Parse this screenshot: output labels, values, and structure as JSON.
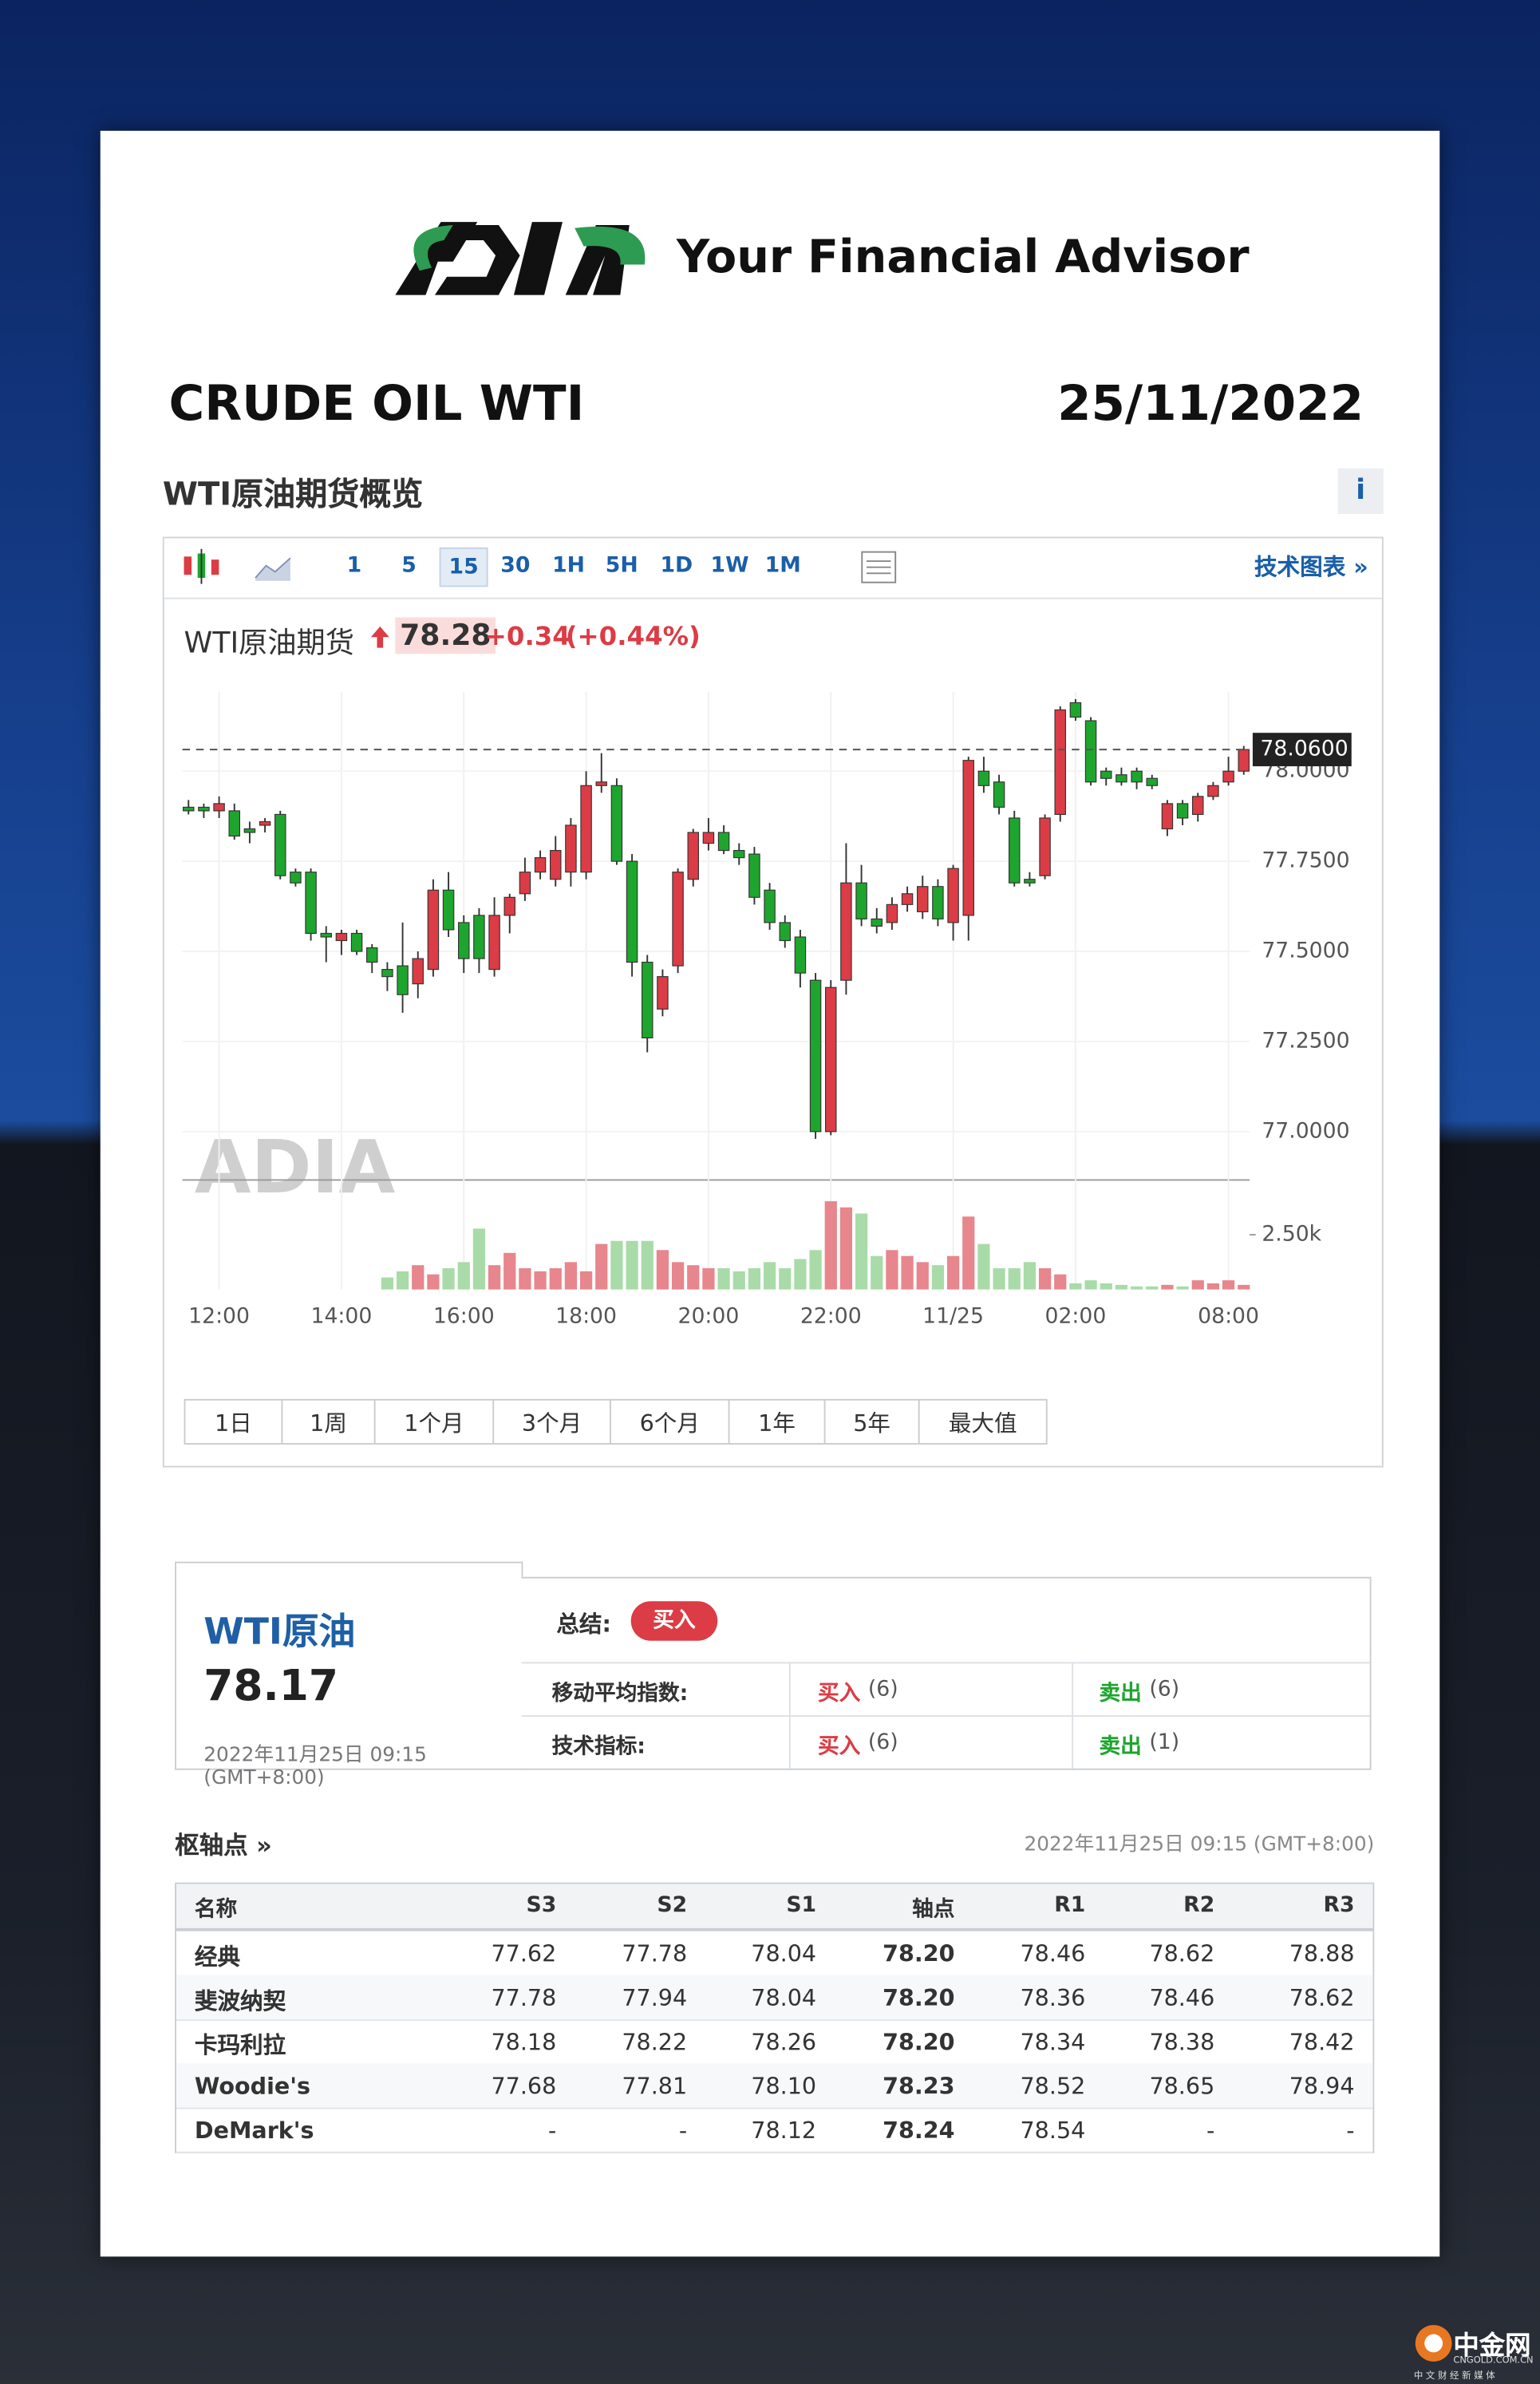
{
  "header": {
    "tagline": "Your Financial Advisor",
    "title": "CRUDE OIL WTI",
    "date": "25/11/2022"
  },
  "overview": {
    "title": "WTI原油期货概览",
    "info": "i",
    "intervals": [
      "1",
      "5",
      "15",
      "30",
      "1H",
      "5H",
      "1D",
      "1W",
      "1M"
    ],
    "tech_chart": "技术图表 »",
    "name": "WTI原油期货",
    "price": "78.28",
    "change": "+0.34",
    "change_pct": "(+0.44%)",
    "ranges": [
      "1日",
      "1周",
      "1个月",
      "3个月",
      "6个月",
      "1年",
      "5年",
      "最大值"
    ]
  },
  "chart_data": {
    "type": "candlestick",
    "watermark": "ADIA",
    "x": [
      null,
      null,
      "12:00",
      null,
      null,
      null,
      null,
      null,
      null,
      null,
      "14:00",
      null,
      null,
      null,
      null,
      null,
      null,
      null,
      "16:00",
      null,
      null,
      null,
      null,
      null,
      null,
      null,
      "18:00",
      null,
      null,
      null,
      null,
      null,
      null,
      null,
      "20:00",
      null,
      null,
      null,
      null,
      null,
      null,
      null,
      "22:00",
      null,
      null,
      null,
      null,
      null,
      null,
      null,
      "11/25",
      null,
      null,
      null,
      null,
      null,
      null,
      null,
      "02:00",
      null,
      null,
      null,
      null,
      null,
      null,
      null,
      null,
      null,
      "08:00",
      null
    ],
    "open": [
      77.9,
      77.9,
      77.89,
      77.89,
      77.84,
      77.85,
      77.88,
      77.72,
      77.72,
      77.55,
      77.53,
      77.55,
      77.51,
      77.45,
      77.46,
      77.41,
      77.45,
      77.67,
      77.58,
      77.6,
      77.45,
      77.6,
      77.66,
      77.72,
      77.7,
      77.72,
      77.72,
      77.96,
      77.96,
      77.75,
      77.47,
      77.34,
      77.46,
      77.7,
      77.8,
      77.83,
      77.78,
      77.77,
      77.67,
      77.58,
      77.54,
      77.42,
      77.0,
      77.42,
      77.69,
      77.59,
      77.58,
      77.63,
      77.61,
      77.68,
      77.58,
      77.6,
      78.0,
      77.97,
      77.87,
      77.7,
      77.71,
      77.88,
      78.19,
      78.14,
      78.0,
      77.99,
      78.0,
      77.98,
      77.84,
      77.91,
      77.88,
      77.93,
      77.97,
      78.0
    ],
    "high": [
      77.92,
      77.91,
      77.93,
      77.91,
      77.86,
      77.87,
      77.89,
      77.73,
      77.73,
      77.57,
      77.56,
      77.56,
      77.52,
      77.47,
      77.58,
      77.5,
      77.7,
      77.72,
      77.6,
      77.62,
      77.65,
      77.66,
      77.76,
      77.78,
      77.82,
      77.87,
      78.0,
      78.05,
      77.98,
      77.77,
      77.49,
      77.45,
      77.73,
      77.84,
      77.87,
      77.85,
      77.8,
      77.79,
      77.69,
      77.6,
      77.56,
      77.44,
      77.42,
      77.8,
      77.74,
      77.62,
      77.65,
      77.68,
      77.71,
      77.7,
      77.74,
      78.04,
      78.04,
      77.99,
      77.89,
      77.72,
      77.88,
      78.18,
      78.2,
      78.15,
      78.01,
      78.01,
      78.01,
      77.99,
      77.92,
      77.92,
      77.94,
      77.97,
      78.04,
      78.07
    ],
    "low": [
      77.88,
      77.87,
      77.87,
      77.81,
      77.8,
      77.83,
      77.7,
      77.68,
      77.53,
      77.47,
      77.49,
      77.49,
      77.44,
      77.39,
      77.33,
      77.37,
      77.43,
      77.54,
      77.44,
      77.44,
      77.43,
      77.55,
      77.64,
      77.7,
      77.68,
      77.68,
      77.7,
      77.94,
      77.74,
      77.43,
      77.22,
      77.32,
      77.44,
      77.68,
      77.78,
      77.77,
      77.74,
      77.63,
      77.56,
      77.51,
      77.4,
      76.98,
      76.99,
      77.38,
      77.57,
      77.55,
      77.56,
      77.61,
      77.59,
      77.57,
      77.53,
      77.53,
      77.94,
      77.88,
      77.68,
      77.68,
      77.7,
      77.86,
      78.14,
      77.96,
      77.96,
      77.96,
      77.95,
      77.95,
      77.82,
      77.85,
      77.86,
      77.92,
      77.96,
      77.99
    ],
    "close": [
      77.89,
      77.89,
      77.91,
      77.82,
      77.83,
      77.86,
      77.71,
      77.69,
      77.55,
      77.54,
      77.55,
      77.5,
      77.47,
      77.43,
      77.38,
      77.48,
      77.67,
      77.56,
      77.48,
      77.48,
      77.6,
      77.65,
      77.72,
      77.76,
      77.78,
      77.85,
      77.96,
      77.97,
      77.75,
      77.47,
      77.26,
      77.43,
      77.72,
      77.83,
      77.83,
      77.78,
      77.76,
      77.65,
      77.58,
      77.53,
      77.44,
      77.0,
      77.4,
      77.69,
      77.59,
      77.57,
      77.63,
      77.66,
      77.68,
      77.59,
      77.73,
      78.03,
      77.96,
      77.9,
      77.69,
      77.69,
      77.87,
      78.17,
      78.15,
      77.97,
      77.98,
      77.97,
      77.97,
      77.96,
      77.91,
      77.87,
      77.93,
      77.96,
      78.0,
      78.06
    ],
    "volume": [
      null,
      null,
      null,
      null,
      null,
      null,
      null,
      null,
      null,
      null,
      null,
      null,
      null,
      550,
      830,
      1110,
      690,
      970,
      1250,
      2780,
      1110,
      1670,
      970,
      830,
      970,
      1250,
      830,
      2080,
      2220,
      2220,
      2220,
      1800,
      1250,
      1110,
      970,
      970,
      830,
      970,
      1250,
      970,
      1390,
      1800,
      4030,
      3750,
      3470,
      1530,
      1800,
      1530,
      1250,
      1110,
      1530,
      3330,
      2080,
      970,
      970,
      1250,
      970,
      690,
      280,
      420,
      280,
      210,
      140,
      140,
      210,
      140,
      420,
      280,
      420,
      210
    ],
    "ylim": [
      76.87,
      78.22
    ],
    "yticks": [
      {
        "value": 77,
        "label": "77.0000"
      },
      {
        "value": 77.25,
        "label": "77.2500"
      },
      {
        "value": 77.5,
        "label": "77.5000"
      },
      {
        "value": 77.75,
        "label": "77.7500"
      },
      {
        "value": 78,
        "label": "78.0000"
      }
    ],
    "volume_ylim": [
      0,
      5070
    ],
    "volume_yticks": [
      {
        "value": 2500,
        "label": "2.50k"
      }
    ],
    "last_price": {
      "value": 78.06,
      "label": "78.0600"
    },
    "grid": true,
    "up_color": "#dc3c45",
    "down_color": "#1ea52e",
    "volume_up_color": "#e7868c",
    "volume_down_color": "#a9dba8"
  },
  "technical": {
    "name": "WTI原油",
    "price": "78.17",
    "time": "2022年11月25日 09:15",
    "timezone": "(GMT+8:00)",
    "summary_label": "总结:",
    "summary": "买入",
    "rows": [
      [
        "移动平均指数:",
        "买入",
        "(6)",
        "卖出",
        "(6)"
      ],
      [
        "技术指标:",
        "买入",
        "(6)",
        "卖出",
        "(1)"
      ]
    ]
  },
  "pivot": {
    "title": "枢轴点 »",
    "time": "2022年11月25日 09:15 (GMT+8:00)",
    "header": [
      "名称",
      "S3",
      "S2",
      "S1",
      "轴点",
      "R1",
      "R2",
      "R3"
    ],
    "rows": [
      [
        "经典",
        "77.62",
        "77.78",
        "78.04",
        "78.20",
        "78.46",
        "78.62",
        "78.88"
      ],
      [
        "斐波纳契",
        "77.78",
        "77.94",
        "78.04",
        "78.20",
        "78.36",
        "78.46",
        "78.62"
      ],
      [
        "卡玛利拉",
        "78.18",
        "78.22",
        "78.26",
        "78.20",
        "78.34",
        "78.38",
        "78.42"
      ],
      [
        "Woodie's",
        "77.68",
        "77.81",
        "78.10",
        "78.23",
        "78.52",
        "78.65",
        "78.94"
      ],
      [
        "DeMark's",
        "-",
        "-",
        "78.12",
        "78.24",
        "78.54",
        "-",
        "-"
      ]
    ]
  },
  "footer": {
    "brand": "中金网",
    "site": "CNGOLD.COM.CN",
    "slogan": "中 文 财 经 新 媒 体"
  }
}
